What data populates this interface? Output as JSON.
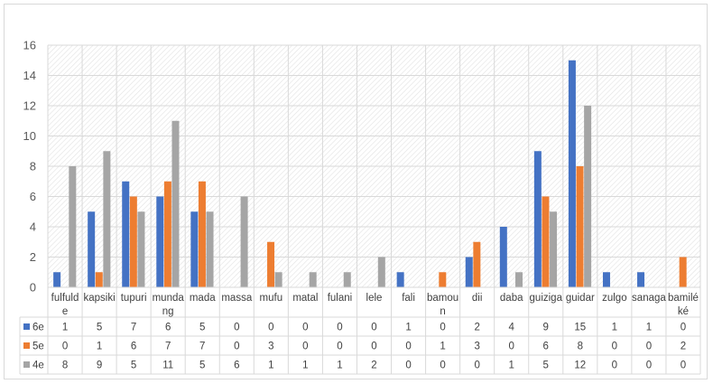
{
  "chart_data": {
    "type": "bar",
    "categories": [
      [
        "fulfuld",
        "e"
      ],
      [
        "kapsiki"
      ],
      [
        "tupuri"
      ],
      [
        "munda",
        "ng"
      ],
      [
        "mada"
      ],
      [
        "massa"
      ],
      [
        "mufu"
      ],
      [
        "matal"
      ],
      [
        "fulani"
      ],
      [
        "lele"
      ],
      [
        "fali"
      ],
      [
        "bamou",
        "n"
      ],
      [
        "dii"
      ],
      [
        "daba"
      ],
      [
        "guiziga"
      ],
      [
        "guidar"
      ],
      [
        "zulgo"
      ],
      [
        "sanaga"
      ],
      [
        "bamilé",
        "ké"
      ]
    ],
    "series": [
      {
        "name": "6e",
        "color": "#4472c4",
        "values": [
          1,
          5,
          7,
          6,
          5,
          0,
          0,
          0,
          0,
          0,
          1,
          0,
          2,
          4,
          9,
          15,
          1,
          1,
          0
        ]
      },
      {
        "name": "5e",
        "color": "#ed7d31",
        "values": [
          0,
          1,
          6,
          7,
          7,
          0,
          3,
          0,
          0,
          0,
          0,
          1,
          3,
          0,
          6,
          8,
          0,
          0,
          2
        ]
      },
      {
        "name": "4e",
        "color": "#a5a5a5",
        "values": [
          8,
          9,
          5,
          11,
          5,
          6,
          1,
          1,
          1,
          2,
          0,
          0,
          0,
          1,
          5,
          12,
          0,
          0,
          0
        ]
      }
    ],
    "yticks": [
      "0",
      "2",
      "4",
      "6",
      "8",
      "10",
      "12",
      "14",
      "16"
    ],
    "ylim": [
      0,
      16
    ],
    "grid": true,
    "legend": "data-table"
  }
}
